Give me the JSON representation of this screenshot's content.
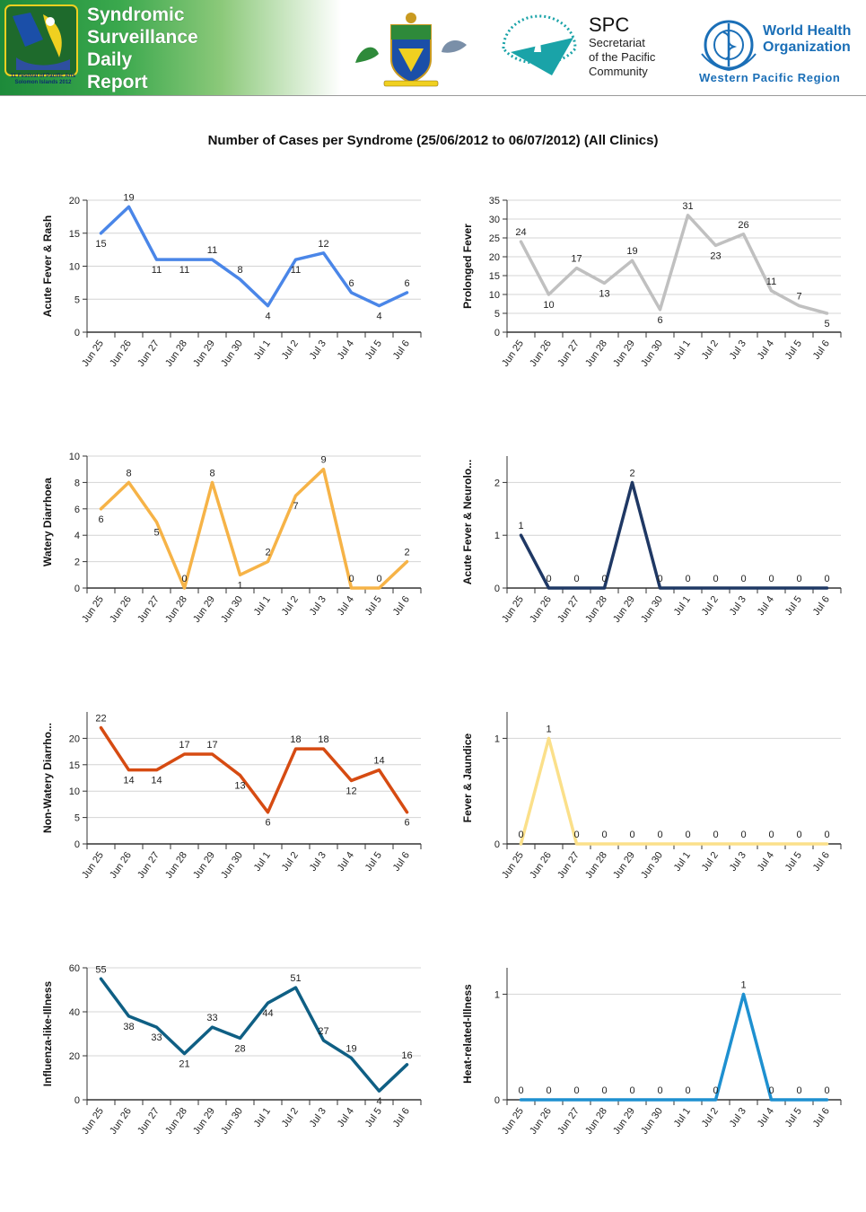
{
  "header": {
    "report_title_lines": [
      "Syndromic",
      "Surveillance",
      "Daily",
      "Report"
    ],
    "festival_caption_lines": [
      "11 Festival of Pacific Arts",
      "Solomon Islands 2012"
    ],
    "spc": {
      "abbr": "SPC",
      "lines": [
        "Secretariat",
        "of the Pacific",
        "Community"
      ]
    },
    "who": {
      "lines": [
        "World Health",
        "Organization"
      ],
      "region": "Western Pacific Region"
    }
  },
  "page_title": "Number of Cases per Syndrome (25/06/2012 to 06/07/2012) (All Clinics)",
  "chart_data": [
    {
      "type": "line",
      "ylabel": "Acute Fever & Rash",
      "color": "#4a86e8",
      "categories": [
        "Jun 25",
        "Jun 26",
        "Jun 27",
        "Jun 28",
        "Jun 29",
        "Jun 30",
        "Jul 1",
        "Jul 2",
        "Jul 3",
        "Jul 4",
        "Jul 5",
        "Jul 6"
      ],
      "values": [
        15,
        19,
        11,
        11,
        11,
        8,
        4,
        11,
        12,
        6,
        4,
        6
      ],
      "ylim": [
        0,
        20
      ],
      "yticks": [
        0,
        5,
        10,
        15,
        20
      ]
    },
    {
      "type": "line",
      "ylabel": "Prolonged Fever",
      "color": "#c0c0c0",
      "categories": [
        "Jun 25",
        "Jun 26",
        "Jun 27",
        "Jun 28",
        "Jun 29",
        "Jun 30",
        "Jul 1",
        "Jul 2",
        "Jul 3",
        "Jul 4",
        "Jul 5",
        "Jul 6"
      ],
      "values": [
        24,
        10,
        17,
        13,
        19,
        6,
        31,
        23,
        26,
        11,
        7,
        5
      ],
      "ylim": [
        0,
        35
      ],
      "yticks": [
        0,
        5,
        10,
        15,
        20,
        25,
        30,
        35
      ]
    },
    {
      "type": "line",
      "ylabel": "Watery Diarrhoea",
      "color": "#f6b347",
      "categories": [
        "Jun 25",
        "Jun 26",
        "Jun 27",
        "Jun 28",
        "Jun 29",
        "Jun 30",
        "Jul 1",
        "Jul 2",
        "Jul 3",
        "Jul 4",
        "Jul 5",
        "Jul 6"
      ],
      "values": [
        6,
        8,
        5,
        0,
        8,
        1,
        2,
        7,
        9,
        0,
        0,
        2
      ],
      "ylim": [
        0,
        10
      ],
      "yticks": [
        0,
        2,
        4,
        6,
        8,
        10
      ]
    },
    {
      "type": "line",
      "ylabel": "Acute Fever & Neurolo...",
      "color": "#1f3864",
      "categories": [
        "Jun 25",
        "Jun 26",
        "Jun 27",
        "Jun 28",
        "Jun 29",
        "Jun 30",
        "Jul 1",
        "Jul 2",
        "Jul 3",
        "Jul 4",
        "Jul 5",
        "Jul 6"
      ],
      "values": [
        1,
        0,
        0,
        0,
        2,
        0,
        0,
        0,
        0,
        0,
        0,
        0
      ],
      "ylim": [
        0,
        2.5
      ],
      "yticks": [
        0,
        1,
        2
      ]
    },
    {
      "type": "line",
      "ylabel": "Non-Watery Diarrho...",
      "color": "#d64b12",
      "categories": [
        "Jun 25",
        "Jun 26",
        "Jun 27",
        "Jun 28",
        "Jun 29",
        "Jun 30",
        "Jul 1",
        "Jul 2",
        "Jul 3",
        "Jul 4",
        "Jul 5",
        "Jul 6"
      ],
      "values": [
        22,
        14,
        14,
        17,
        17,
        13,
        6,
        18,
        18,
        12,
        14,
        6
      ],
      "ylim": [
        0,
        25
      ],
      "yticks": [
        0,
        5,
        10,
        15,
        20
      ]
    },
    {
      "type": "line",
      "ylabel": "Fever & Jaundice",
      "color": "#fbe08a",
      "categories": [
        "Jun 25",
        "Jun 26",
        "Jun 27",
        "Jun 28",
        "Jun 29",
        "Jun 30",
        "Jul 1",
        "Jul 2",
        "Jul 3",
        "Jul 4",
        "Jul 5",
        "Jul 6"
      ],
      "values": [
        0,
        1,
        0,
        0,
        0,
        0,
        0,
        0,
        0,
        0,
        0,
        0
      ],
      "ylim": [
        0,
        1.25
      ],
      "yticks": [
        0,
        1
      ]
    },
    {
      "type": "line",
      "ylabel": "Influenza-like-Illness",
      "color": "#0f5f84",
      "categories": [
        "Jun 25",
        "Jun 26",
        "Jun 27",
        "Jun 28",
        "Jun 29",
        "Jun 30",
        "Jul 1",
        "Jul 2",
        "Jul 3",
        "Jul 4",
        "Jul 5",
        "Jul 6"
      ],
      "values": [
        55,
        38,
        33,
        21,
        33,
        28,
        44,
        51,
        27,
        19,
        4,
        16
      ],
      "ylim": [
        0,
        60
      ],
      "yticks": [
        0,
        20,
        40,
        60
      ]
    },
    {
      "type": "line",
      "ylabel": "Heat-related-Illness",
      "color": "#1e90d0",
      "categories": [
        "Jun 25",
        "Jun 26",
        "Jun 27",
        "Jun 28",
        "Jun 29",
        "Jun 30",
        "Jul 1",
        "Jul 2",
        "Jul 3",
        "Jul 4",
        "Jul 5",
        "Jul 6"
      ],
      "values": [
        0,
        0,
        0,
        0,
        0,
        0,
        0,
        0,
        1,
        0,
        0,
        0
      ],
      "ylim": [
        0,
        1.25
      ],
      "yticks": [
        0,
        1
      ]
    }
  ]
}
